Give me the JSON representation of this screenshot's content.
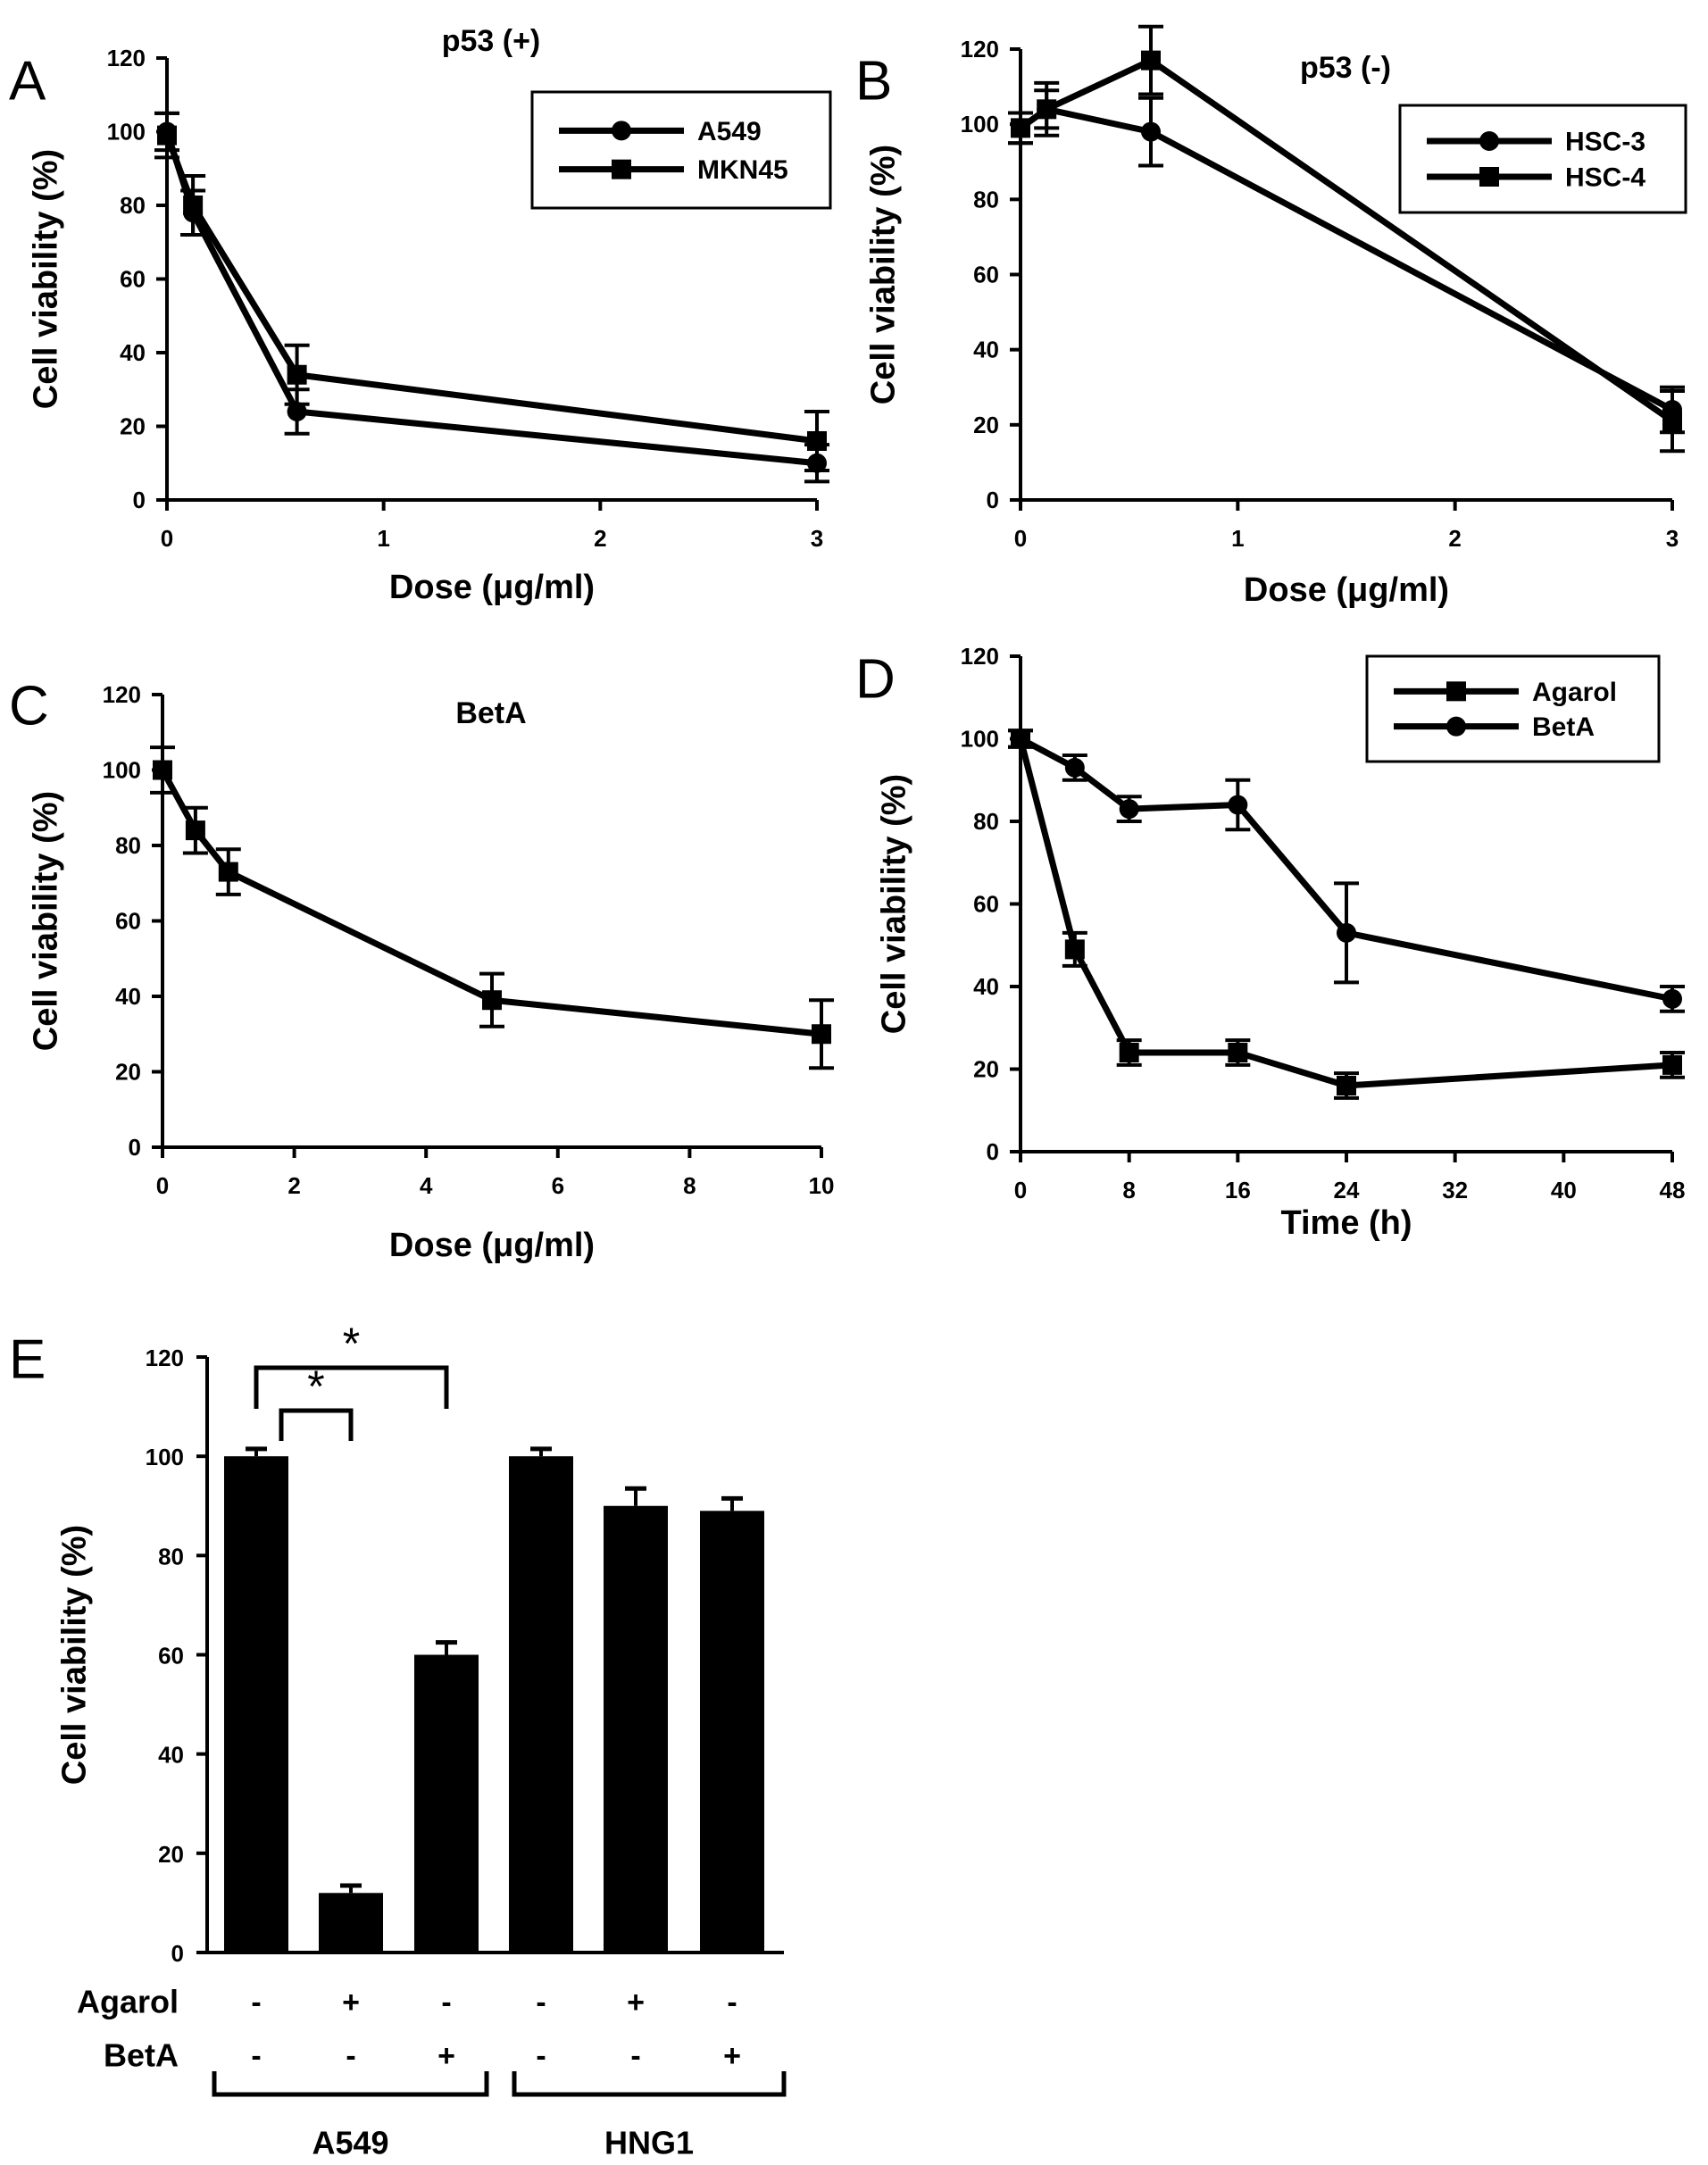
{
  "chart_data": [
    {
      "panel": "A",
      "type": "line",
      "title": "p53 (+)",
      "xlabel": "Dose (μg/ml)",
      "ylabel": "Cell viability (%)",
      "xlim": [
        0,
        3
      ],
      "ylim": [
        0,
        120
      ],
      "xticks": [
        0,
        1,
        2,
        3
      ],
      "yticks": [
        0,
        20,
        40,
        60,
        80,
        100,
        120
      ],
      "legend_position": "top-right",
      "series": [
        {
          "name": "A549",
          "marker": "circle",
          "x": [
            0,
            0.12,
            0.6,
            3
          ],
          "y": [
            100,
            78,
            24,
            10
          ],
          "err": [
            5,
            6,
            6,
            5
          ]
        },
        {
          "name": "MKN45",
          "marker": "square",
          "x": [
            0,
            0.12,
            0.6,
            3
          ],
          "y": [
            99,
            80,
            34,
            16
          ],
          "err": [
            6,
            8,
            8,
            8
          ]
        }
      ]
    },
    {
      "panel": "B",
      "type": "line",
      "title": "p53 (-)",
      "xlabel": "Dose (μg/ml)",
      "ylabel": "Cell viability (%)",
      "xlim": [
        0,
        3
      ],
      "ylim": [
        0,
        120
      ],
      "xticks": [
        0,
        1,
        2,
        3
      ],
      "yticks": [
        0,
        20,
        40,
        60,
        80,
        100,
        120
      ],
      "legend_position": "top-right",
      "series": [
        {
          "name": "HSC-3",
          "marker": "circle",
          "x": [
            0,
            0.12,
            0.6,
            3
          ],
          "y": [
            99,
            104,
            98,
            24
          ],
          "err": [
            4,
            7,
            9,
            6
          ]
        },
        {
          "name": "HSC-4",
          "marker": "square",
          "x": [
            0,
            0.12,
            0.6,
            3
          ],
          "y": [
            99,
            104,
            117,
            21
          ],
          "err": [
            4,
            5,
            9,
            8
          ]
        }
      ]
    },
    {
      "panel": "C",
      "type": "line",
      "title": "BetA",
      "xlabel": "Dose (μg/ml)",
      "ylabel": "Cell viability (%)",
      "xlim": [
        0,
        10
      ],
      "ylim": [
        0,
        120
      ],
      "xticks": [
        0,
        2,
        4,
        6,
        8,
        10
      ],
      "yticks": [
        0,
        20,
        40,
        60,
        80,
        100,
        120
      ],
      "series": [
        {
          "name": "",
          "marker": "square",
          "x": [
            0,
            0.5,
            1,
            5,
            10
          ],
          "y": [
            100,
            84,
            73,
            39,
            30
          ],
          "err": [
            6,
            6,
            6,
            7,
            9
          ]
        }
      ]
    },
    {
      "panel": "D",
      "type": "line",
      "title": "",
      "xlabel": "Time (h)",
      "ylabel": "Cell viability (%)",
      "xlim": [
        0,
        48
      ],
      "ylim": [
        0,
        120
      ],
      "xticks": [
        0,
        8,
        16,
        24,
        32,
        40,
        48
      ],
      "yticks": [
        0,
        20,
        40,
        60,
        80,
        100,
        120
      ],
      "legend_position": "top-right",
      "series": [
        {
          "name": "Agarol",
          "marker": "square",
          "x": [
            0,
            4,
            8,
            16,
            24,
            48
          ],
          "y": [
            100,
            49,
            24,
            24,
            16,
            21
          ],
          "err": [
            2,
            4,
            3,
            3,
            3,
            3
          ]
        },
        {
          "name": "BetA",
          "marker": "circle",
          "x": [
            0,
            4,
            8,
            16,
            24,
            48
          ],
          "y": [
            100,
            93,
            83,
            84,
            53,
            37
          ],
          "err": [
            2,
            3,
            3,
            6,
            12,
            3
          ]
        }
      ]
    },
    {
      "panel": "E",
      "type": "bar",
      "ylabel": "Cell viability (%)",
      "ylim": [
        0,
        120
      ],
      "yticks": [
        0,
        20,
        40,
        60,
        80,
        100,
        120
      ],
      "values": [
        100,
        12,
        60,
        100,
        90,
        89
      ],
      "errors": [
        1.5,
        1.5,
        2.5,
        1.5,
        3.5,
        2.5
      ],
      "treatment_rows": [
        {
          "label": "Agarol",
          "signs": [
            "-",
            "+",
            "-",
            "-",
            "+",
            "-"
          ]
        },
        {
          "label": "BetA",
          "signs": [
            "-",
            "-",
            "+",
            "-",
            "-",
            "+"
          ]
        }
      ],
      "groups": [
        {
          "label": "A549",
          "bars": [
            0,
            1,
            2
          ]
        },
        {
          "label": "HNG1",
          "bars": [
            3,
            4,
            5
          ]
        }
      ],
      "significance": [
        {
          "from": 0,
          "to": 2,
          "label": "*"
        },
        {
          "from": 0,
          "to": 1,
          "label": "*"
        }
      ]
    }
  ]
}
